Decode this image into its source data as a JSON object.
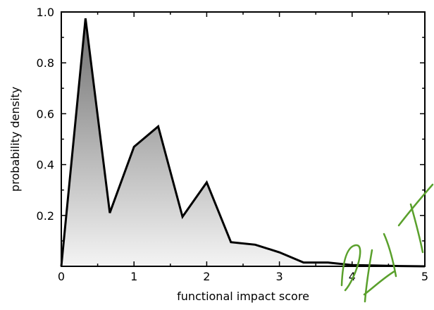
{
  "chart_data": {
    "type": "area",
    "xlabel": "functional impact score",
    "ylabel": "probability density",
    "xlim": [
      0,
      5
    ],
    "ylim": [
      0,
      1.0
    ],
    "xticks": [
      0,
      1,
      2,
      3,
      4,
      5
    ],
    "xtick_labels": [
      "0",
      "1",
      "2",
      "3",
      "4",
      "5"
    ],
    "yticks": [
      0.2,
      0.4,
      0.6,
      0.8,
      1.0
    ],
    "ytick_labels": [
      "0.2",
      "0.4",
      "0.6",
      "0.8",
      "1.0"
    ],
    "grid": false,
    "legend": "none",
    "fill": "vertical gradient, dark gray at top to light gray at bottom",
    "colors": {
      "line": "#000000",
      "fill_top": "#6e6e6e",
      "fill_bottom": "#f4f4f4",
      "scribble": "#5aa02c"
    },
    "series": [
      {
        "x": [
          0,
          0.333,
          0.667,
          1.0,
          1.333,
          1.667,
          2.0,
          2.333,
          2.667,
          3.0,
          3.333,
          3.667,
          4.0,
          4.333,
          4.667,
          5.0
        ],
        "y": [
          0.0,
          0.975,
          0.21,
          0.47,
          0.55,
          0.195,
          0.33,
          0.095,
          0.085,
          0.055,
          0.015,
          0.015,
          0.005,
          0.003,
          0.001,
          0.0
        ]
      }
    ]
  }
}
